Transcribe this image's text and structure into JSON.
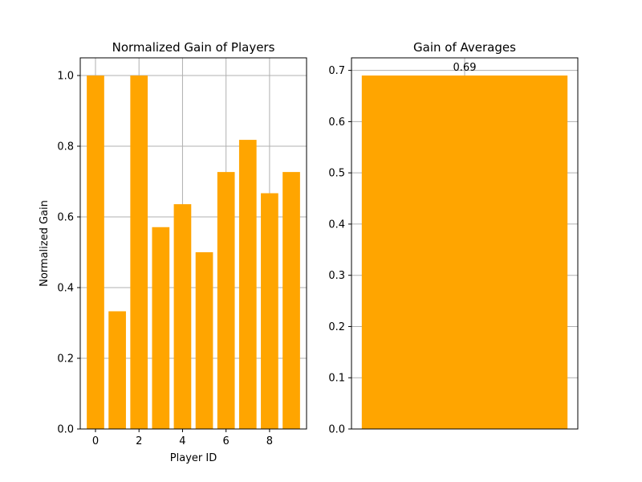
{
  "chart_data": [
    {
      "type": "bar",
      "title": "Normalized Gain of Players",
      "xlabel": "Player ID",
      "ylabel": "Normalized Gain",
      "x": [
        0,
        1,
        2,
        3,
        4,
        5,
        6,
        7,
        8,
        9
      ],
      "values": [
        1.0,
        0.333,
        1.0,
        0.571,
        0.636,
        0.5,
        0.727,
        0.818,
        0.667,
        0.727
      ],
      "xlim": [
        -0.7,
        9.7
      ],
      "ylim": [
        0,
        1.05
      ],
      "xticks": [
        0,
        2,
        4,
        6,
        8
      ],
      "yticks": [
        0.0,
        0.2,
        0.4,
        0.6,
        0.8,
        1.0
      ],
      "grid": true,
      "bar_color": "#ffa500"
    },
    {
      "type": "bar",
      "title": "Gain of Averages",
      "xlabel": "",
      "ylabel": "",
      "categories": [
        ""
      ],
      "values": [
        0.69
      ],
      "data_labels": [
        "0.69"
      ],
      "ylim": [
        0,
        0.7245
      ],
      "yticks": [
        0.0,
        0.1,
        0.2,
        0.3,
        0.4,
        0.5,
        0.6,
        0.7
      ],
      "grid": true,
      "bar_color": "#ffa500"
    }
  ]
}
